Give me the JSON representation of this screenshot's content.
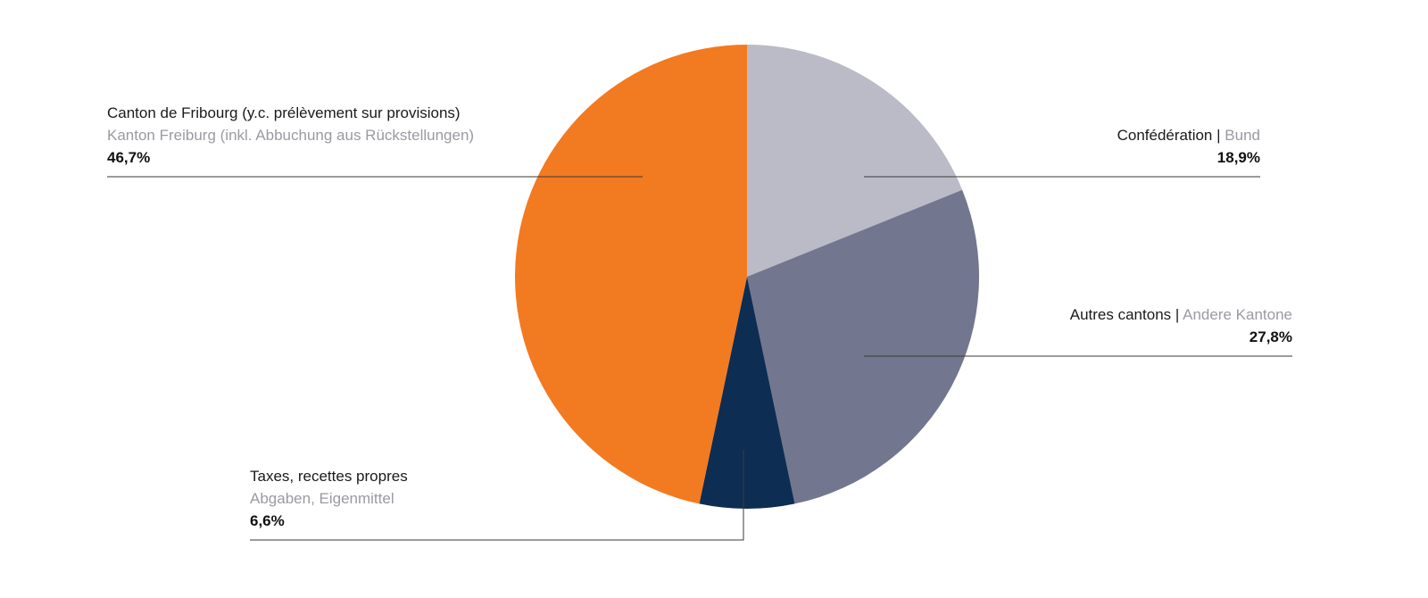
{
  "chart_data": {
    "type": "pie",
    "slices": [
      {
        "label_fr": "Confédération",
        "label_de": "Bund",
        "value": 18.9,
        "value_label": "18,9%",
        "color": "#bbbbc8"
      },
      {
        "label_fr": "Autres cantons",
        "label_de": "Andere Kantone",
        "value": 27.8,
        "value_label": "27,8%",
        "color": "#73768f"
      },
      {
        "label_fr": "Taxes, recettes propres",
        "label_de": "Abgaben, Eigenmittel",
        "value": 6.6,
        "value_label": "6,6%",
        "color": "#0e2d52"
      },
      {
        "label_fr": "Canton de Fribourg (y.c. prélèvement sur provisions)",
        "label_de": "Kanton Freiburg (inkl. Abbuchung aus Rückstellungen)",
        "value": 46.7,
        "value_label": "46,7%",
        "color": "#f27a21"
      }
    ],
    "separator": "|"
  }
}
